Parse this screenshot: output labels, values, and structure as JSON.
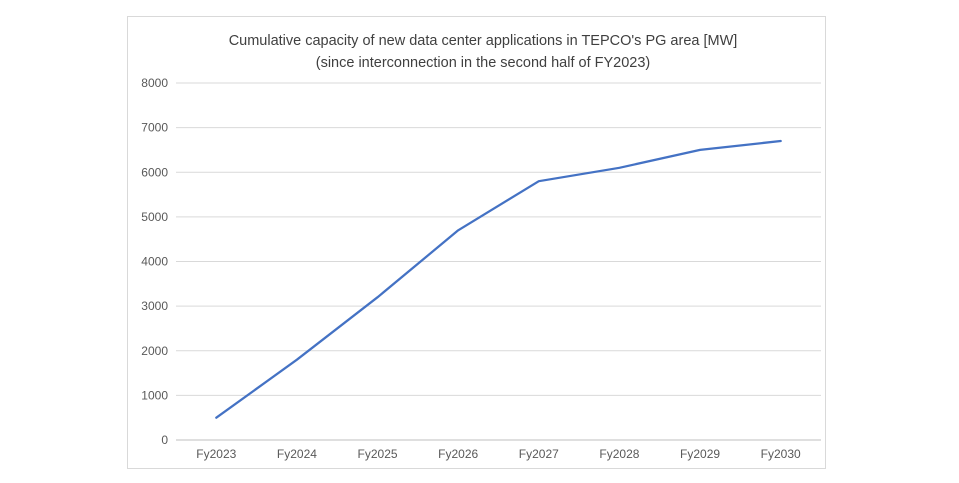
{
  "chart_data": {
    "type": "line",
    "title": "Cumulative capacity of new data center applications in TEPCO's PG area [MW]",
    "subtitle": "(since interconnection in the second half of FY2023)",
    "categories": [
      "Fy2023",
      "Fy2024",
      "Fy2025",
      "Fy2026",
      "Fy2027",
      "Fy2028",
      "Fy2029",
      "Fy2030"
    ],
    "series": [
      {
        "name": "Cumulative capacity of new data center applications",
        "values": [
          500,
          1800,
          3200,
          4700,
          5800,
          6100,
          6500,
          6700
        ]
      }
    ],
    "xlabel": "",
    "ylabel": "",
    "ylim": [
      0,
      8000
    ],
    "ytick_interval": 1000,
    "ytick_labels": [
      "0",
      "1000",
      "2000",
      "3000",
      "4000",
      "5000",
      "6000",
      "7000",
      "8000"
    ],
    "grid": true,
    "legend": "none",
    "markers": false,
    "colors": {
      "line": "#4472C4",
      "gridline": "#d9d9d9",
      "axis_line": "#bfbfbf",
      "tick_label": "#595959",
      "title": "#404040",
      "frame_border": "#d9d9d9",
      "background": "#ffffff"
    }
  }
}
